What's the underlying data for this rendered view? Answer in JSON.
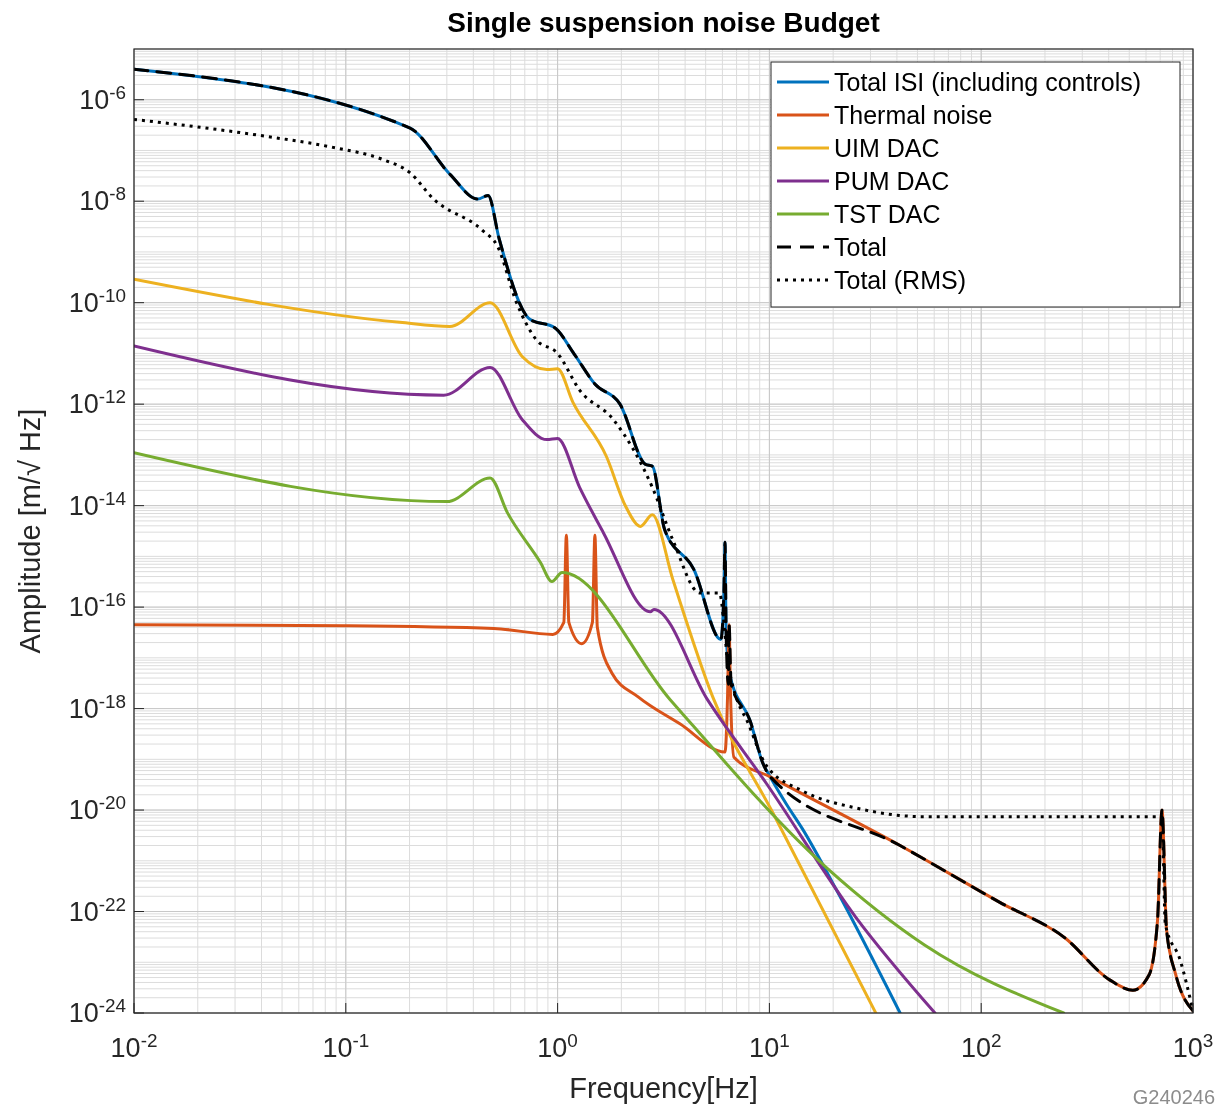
{
  "chart_data": {
    "type": "line",
    "title": "Single suspension noise Budget",
    "xlabel": "Frequency[Hz]",
    "ylabel": "Amplitude [m/√ Hz]",
    "log": "xy",
    "grid": true,
    "legend": "top right",
    "xlim": [
      0.01,
      1000
    ],
    "ylim": [
      1e-24,
      1e-05
    ],
    "xticks": [
      {
        "value": 0.01,
        "label": "10$^{-2}$"
      },
      {
        "value": 0.1,
        "label": "10$^{-1}$"
      },
      {
        "value": 1,
        "label": "10$^{0}$"
      },
      {
        "value": 10,
        "label": "10$^{1}$"
      },
      {
        "value": 100,
        "label": "10$^{2}$"
      },
      {
        "value": 1000,
        "label": "10$^{3}$"
      }
    ],
    "yticks": [
      {
        "value": 1e-24,
        "label": "10$^{-24}$"
      },
      {
        "value": 1e-22,
        "label": "10$^{-22}$"
      },
      {
        "value": 1e-20,
        "label": "10$^{-20}$"
      },
      {
        "value": 1e-18,
        "label": "10$^{-18}$"
      },
      {
        "value": 1e-16,
        "label": "10$^{-16}$"
      },
      {
        "value": 1e-14,
        "label": "10$^{-14}$"
      },
      {
        "value": 1e-12,
        "label": "10$^{-12}$"
      },
      {
        "value": 1e-10,
        "label": "10$^{-10}$"
      },
      {
        "value": 1e-08,
        "label": "10$^{-8}$"
      },
      {
        "value": 1e-06,
        "label": "10$^{-6}$"
      }
    ],
    "annotations": [
      "G240246"
    ],
    "series": [
      {
        "name": "Total ISI (including controls)",
        "color": "#0072bd",
        "line_style": "solid",
        "x": [
          0.01,
          0.2,
          0.31,
          0.42,
          0.47,
          0.53,
          0.74,
          0.97,
          1.2,
          1.5,
          1.97,
          2.6,
          2.8,
          3.2,
          4.4,
          5.9,
          6.1,
          6.17,
          6.25,
          6.5,
          8.1,
          9.3,
          10.1,
          12.1,
          14.3,
          20.9,
          41.4
        ],
        "values": [
          4e-06,
          2.8e-07,
          3.4e-08,
          1.1e-08,
          1.3e-08,
          1.8e-09,
          4.7e-11,
          3.2e-11,
          9.6e-12,
          2.5e-12,
          1e-12,
          6.5e-14,
          6e-14,
          3.4e-15,
          5.5e-16,
          2.3e-17,
          2e-16,
          1.9e-15,
          3e-17,
          4.7e-18,
          5.8e-19,
          8.5e-20,
          4.5e-20,
          1.26e-20,
          4.3e-21,
          2.5e-22,
          1e-24
        ]
      },
      {
        "name": "Thermal noise",
        "color": "#d95319",
        "line_style": "solid",
        "x": [
          0.01,
          0.1,
          0.5,
          0.95,
          1.07,
          1.1,
          1.13,
          1.3,
          1.46,
          1.5,
          1.54,
          1.8,
          2.4,
          3.78,
          6.17,
          6.35,
          6.45,
          6.55,
          6.8,
          10.1,
          41.4,
          123,
          249,
          404,
          520,
          620,
          680,
          714,
          750,
          830,
          1000
        ],
        "values": [
          4.5e-17,
          4.3e-17,
          3.8e-17,
          2.9e-17,
          5e-17,
          2.6e-15,
          5e-17,
          1.9e-17,
          5e-17,
          2.6e-15,
          4e-17,
          5.1e-18,
          1.7e-18,
          5e-19,
          1.4e-19,
          2e-18,
          4.5e-17,
          2e-18,
          1.1e-19,
          4.5e-20,
          2e-21,
          1.5e-22,
          3e-23,
          4.5e-24,
          2.8e-24,
          5.6e-24,
          6.7e-23,
          1e-20,
          4.4e-23,
          5.6e-24,
          1.1e-24
        ]
      },
      {
        "name": "UIM DAC",
        "color": "#edb120",
        "line_style": "solid",
        "x": [
          0.01,
          0.18,
          0.31,
          0.48,
          0.68,
          0.89,
          1.0,
          1.18,
          1.7,
          2.1,
          2.46,
          2.8,
          3.5,
          5.4,
          10.5,
          31.8
        ],
        "values": [
          2.9e-10,
          4.1e-11,
          3.4e-11,
          1e-10,
          8.7e-12,
          4.8e-12,
          5e-12,
          1.1e-12,
          9.3e-14,
          9.5e-15,
          3.9e-15,
          6.6e-15,
          3.5e-16,
          1.7e-18,
          8.1e-21,
          1e-24
        ]
      },
      {
        "name": "PUM DAC",
        "color": "#7e2f8e",
        "line_style": "solid",
        "x": [
          0.01,
          0.29,
          0.48,
          0.68,
          0.89,
          1.0,
          1.27,
          1.64,
          2.74,
          2.85,
          5.1,
          9.7,
          25.6,
          60.5
        ],
        "values": [
          1.4e-11,
          1.5e-12,
          5.3e-12,
          5e-13,
          2e-13,
          2.1e-13,
          2.3e-14,
          3e-15,
          8.1e-17,
          9e-17,
          1.5e-18,
          3.3e-20,
          7.7e-23,
          1e-24
        ]
      },
      {
        "name": "TST DAC",
        "color": "#77ac30",
        "line_style": "solid",
        "x": [
          0.01,
          0.3,
          0.48,
          0.58,
          0.83,
          0.94,
          1.05,
          3.4,
          18.7,
          54,
          245
        ],
        "values": [
          1.1e-13,
          1.2e-14,
          3.5e-14,
          7.2e-15,
          7.6e-16,
          3.2e-16,
          4.8e-16,
          1.5e-18,
          7.2e-22,
          2.2e-23,
          1e-24
        ]
      },
      {
        "name": "Total",
        "color": "#000000",
        "line_style": "dashed",
        "x": [
          0.01,
          0.2,
          0.31,
          0.42,
          0.47,
          0.53,
          0.74,
          0.97,
          1.2,
          1.5,
          1.97,
          2.6,
          2.8,
          3.2,
          4.4,
          5.9,
          6.1,
          6.17,
          6.25,
          6.4,
          6.45,
          6.6,
          8.1,
          9.3,
          10.1,
          41.4,
          123,
          249,
          404,
          520,
          620,
          680,
          714,
          750,
          830,
          1000
        ],
        "values": [
          4e-06,
          2.8e-07,
          3.4e-08,
          1.1e-08,
          1.3e-08,
          1.8e-09,
          4.7e-11,
          3.2e-11,
          9.6e-12,
          2.5e-12,
          1e-12,
          6.5e-14,
          6e-14,
          3.4e-15,
          5.5e-16,
          2.3e-17,
          2e-16,
          1.9e-15,
          3e-17,
          3e-18,
          4.5e-17,
          3e-18,
          5.8e-19,
          8.5e-20,
          4.5e-20,
          2e-21,
          1.5e-22,
          3e-23,
          4.5e-24,
          2.8e-24,
          5.6e-24,
          6.7e-23,
          1e-20,
          4.4e-23,
          5.6e-24,
          1.1e-24
        ]
      },
      {
        "name": "Total (RMS)",
        "color": "#000000",
        "line_style": "dotted",
        "x": [
          0.01,
          0.042,
          0.087,
          0.15,
          0.2,
          0.26,
          0.44,
          0.52,
          0.64,
          0.79,
          1.0,
          1.27,
          1.83,
          2.8,
          3.5,
          4.7,
          5.8,
          6.4,
          8.1,
          9.7,
          14.3,
          25.6,
          54,
          714,
          740,
          870,
          1000
        ],
        "values": [
          4.1e-07,
          1.9e-07,
          1.15e-07,
          6.6e-08,
          3.7e-08,
          1.1e-08,
          2.7e-09,
          1.3e-09,
          1e-10,
          1.9e-11,
          1e-11,
          1.9e-12,
          5e-13,
          2.3e-14,
          2.1e-15,
          1.9e-16,
          1.9e-16,
          7.2e-18,
          4.2e-19,
          7.4e-20,
          2.4e-20,
          1.1e-20,
          7.4e-21,
          7.4e-21,
          5.7e-23,
          1.1e-23,
          1.1e-24
        ]
      }
    ]
  }
}
